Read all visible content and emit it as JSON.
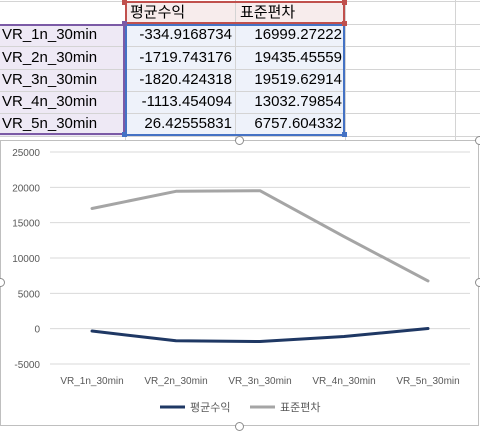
{
  "sheet": {
    "headers": [
      "평균수익",
      "표준편차"
    ],
    "rows": [
      {
        "label": "VR_1n_30min",
        "mean": "-334.9168734",
        "std": "16999.27222"
      },
      {
        "label": "VR_2n_30min",
        "mean": "-1719.743176",
        "std": "19435.45559"
      },
      {
        "label": "VR_3n_30min",
        "mean": "-1820.424318",
        "std": "19519.62914"
      },
      {
        "label": "VR_4n_30min",
        "mean": "-1113.454094",
        "std": "13032.79854"
      },
      {
        "label": "VR_5n_30min",
        "mean": "26.42555831",
        "std": "6757.604332"
      }
    ]
  },
  "chart_data": {
    "type": "line",
    "categories": [
      "VR_1n_30min",
      "VR_2n_30min",
      "VR_3n_30min",
      "VR_4n_30min",
      "VR_5n_30min"
    ],
    "series": [
      {
        "name": "평균수익",
        "values": [
          -334.9168734,
          -1719.743176,
          -1820.424318,
          -1113.454094,
          26.42555831
        ],
        "color": "#1f3864"
      },
      {
        "name": "표준편차",
        "values": [
          16999.27222,
          19435.45559,
          19519.62914,
          13032.79854,
          6757.604332
        ],
        "color": "#a5a5a5"
      }
    ],
    "ylim": [
      -5000,
      25000
    ],
    "yticks": [
      "25000",
      "20000",
      "15000",
      "10000",
      "5000",
      "0",
      "-5000"
    ],
    "grid": true,
    "legend": "bottom"
  }
}
